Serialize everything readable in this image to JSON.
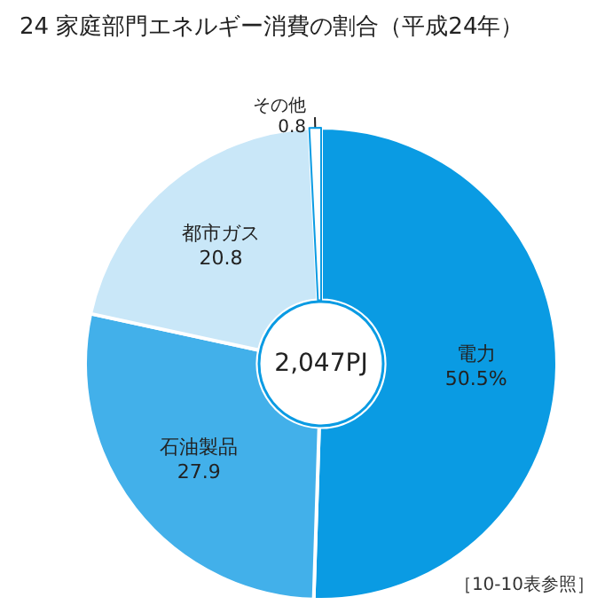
{
  "chart_data": {
    "type": "donut",
    "title": "24 家庭部門エネルギー消費の割合（平成24年）",
    "categories": [
      "電力",
      "石油製品",
      "都市ガス",
      "その他"
    ],
    "values": [
      50.5,
      27.9,
      20.8,
      0.8
    ],
    "value_labels": [
      "50.5%",
      "27.9",
      "20.8",
      "0.8"
    ],
    "colors": [
      "#0a9be3",
      "#42b0ea",
      "#c9e7f8",
      "#ffffff"
    ],
    "annotations": [
      "2,047PJ",
      "［10-10表参照］"
    ],
    "legend": false
  }
}
